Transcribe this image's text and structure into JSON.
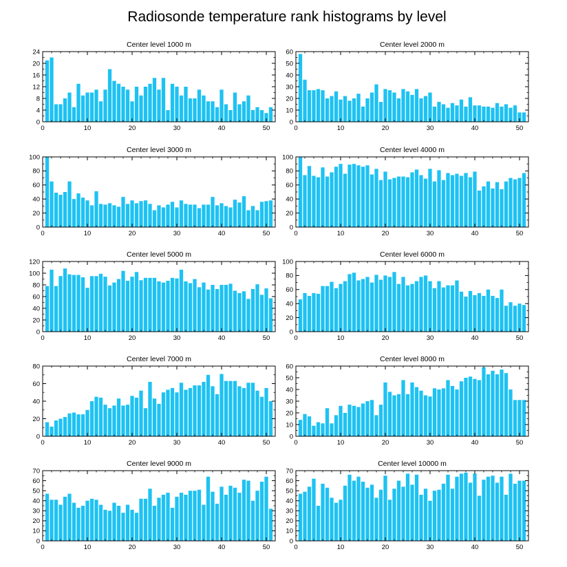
{
  "figure_title": "Radiosonde temperature rank histograms by level",
  "colors": {
    "bar": "#1ec2f2",
    "axis": "#000000"
  },
  "chart_data": [
    {
      "type": "bar",
      "title": "Center level 1000 m",
      "xlim": [
        0,
        52
      ],
      "ylim": [
        0,
        24
      ],
      "xticks": [
        0,
        10,
        20,
        30,
        40,
        50
      ],
      "yticks": [
        0,
        4,
        8,
        12,
        16,
        20,
        24
      ],
      "x": [
        1,
        2,
        3,
        4,
        5,
        6,
        7,
        8,
        9,
        10,
        11,
        12,
        13,
        14,
        15,
        16,
        17,
        18,
        19,
        20,
        21,
        22,
        23,
        24,
        25,
        26,
        27,
        28,
        29,
        30,
        31,
        32,
        33,
        34,
        35,
        36,
        37,
        38,
        39,
        40,
        41,
        42,
        43,
        44,
        45,
        46,
        47,
        48,
        49,
        50,
        51
      ],
      "values": [
        21,
        22,
        6,
        6,
        8,
        10,
        5,
        13,
        9,
        10,
        10,
        11,
        7,
        11,
        18,
        14,
        13,
        12,
        11,
        7,
        12,
        9,
        12,
        13,
        15,
        11,
        15,
        4,
        13,
        12,
        9,
        12,
        8,
        8,
        11,
        9,
        7,
        7,
        5,
        11,
        6,
        4,
        10,
        6,
        7,
        9,
        4,
        5,
        4,
        3,
        5
      ]
    },
    {
      "type": "bar",
      "title": "Center level 2000 m",
      "xlim": [
        0,
        52
      ],
      "ylim": [
        0,
        60
      ],
      "xticks": [
        0,
        10,
        20,
        30,
        40,
        50
      ],
      "yticks": [
        0,
        10,
        20,
        30,
        40,
        50,
        60
      ],
      "x": [
        1,
        2,
        3,
        4,
        5,
        6,
        7,
        8,
        9,
        10,
        11,
        12,
        13,
        14,
        15,
        16,
        17,
        18,
        19,
        20,
        21,
        22,
        23,
        24,
        25,
        26,
        27,
        28,
        29,
        30,
        31,
        32,
        33,
        34,
        35,
        36,
        37,
        38,
        39,
        40,
        41,
        42,
        43,
        44,
        45,
        46,
        47,
        48,
        49,
        50,
        51
      ],
      "values": [
        58,
        36,
        27,
        27,
        28,
        27,
        20,
        22,
        26,
        19,
        22,
        18,
        20,
        24,
        13,
        20,
        25,
        32,
        17,
        28,
        27,
        25,
        20,
        28,
        26,
        23,
        28,
        20,
        22,
        25,
        13,
        17,
        15,
        12,
        16,
        14,
        19,
        13,
        21,
        14,
        14,
        13,
        13,
        12,
        16,
        13,
        15,
        12,
        14,
        8,
        8
      ]
    },
    {
      "type": "bar",
      "title": "Center level 3000 m",
      "xlim": [
        0,
        52
      ],
      "ylim": [
        0,
        100
      ],
      "xticks": [
        0,
        10,
        20,
        30,
        40,
        50
      ],
      "yticks": [
        0,
        20,
        40,
        60,
        80,
        100
      ],
      "x": [
        1,
        2,
        3,
        4,
        5,
        6,
        7,
        8,
        9,
        10,
        11,
        12,
        13,
        14,
        15,
        16,
        17,
        18,
        19,
        20,
        21,
        22,
        23,
        24,
        25,
        26,
        27,
        28,
        29,
        30,
        31,
        32,
        33,
        34,
        35,
        36,
        37,
        38,
        39,
        40,
        41,
        42,
        43,
        44,
        45,
        46,
        47,
        48,
        49,
        50,
        51
      ],
      "values": [
        100,
        65,
        49,
        46,
        50,
        65,
        40,
        48,
        42,
        38,
        31,
        51,
        33,
        32,
        34,
        31,
        29,
        43,
        33,
        38,
        34,
        37,
        38,
        33,
        24,
        31,
        28,
        32,
        36,
        28,
        38,
        33,
        32,
        32,
        27,
        32,
        32,
        43,
        31,
        34,
        30,
        28,
        39,
        35,
        44,
        24,
        30,
        24,
        36,
        37,
        38
      ]
    },
    {
      "type": "bar",
      "title": "Center level 4000 m",
      "xlim": [
        0,
        52
      ],
      "ylim": [
        0,
        100
      ],
      "xticks": [
        0,
        10,
        20,
        30,
        40,
        50
      ],
      "yticks": [
        0,
        20,
        40,
        60,
        80,
        100
      ],
      "x": [
        1,
        2,
        3,
        4,
        5,
        6,
        7,
        8,
        9,
        10,
        11,
        12,
        13,
        14,
        15,
        16,
        17,
        18,
        19,
        20,
        21,
        22,
        23,
        24,
        25,
        26,
        27,
        28,
        29,
        30,
        31,
        32,
        33,
        34,
        35,
        36,
        37,
        38,
        39,
        40,
        41,
        42,
        43,
        44,
        45,
        46,
        47,
        48,
        49,
        50,
        51
      ],
      "values": [
        100,
        74,
        87,
        73,
        71,
        85,
        72,
        78,
        86,
        90,
        76,
        89,
        90,
        88,
        86,
        88,
        75,
        83,
        67,
        79,
        68,
        70,
        72,
        72,
        71,
        78,
        82,
        74,
        69,
        83,
        65,
        81,
        67,
        77,
        74,
        76,
        73,
        77,
        71,
        79,
        52,
        58,
        65,
        55,
        64,
        54,
        65,
        70,
        68,
        70,
        77
      ]
    },
    {
      "type": "bar",
      "title": "Center level 5000 m",
      "xlim": [
        0,
        52
      ],
      "ylim": [
        0,
        120
      ],
      "xticks": [
        0,
        10,
        20,
        30,
        40,
        50
      ],
      "yticks": [
        0,
        20,
        40,
        60,
        80,
        100,
        120
      ],
      "x": [
        1,
        2,
        3,
        4,
        5,
        6,
        7,
        8,
        9,
        10,
        11,
        12,
        13,
        14,
        15,
        16,
        17,
        18,
        19,
        20,
        21,
        22,
        23,
        24,
        25,
        26,
        27,
        28,
        29,
        30,
        31,
        32,
        33,
        34,
        35,
        36,
        37,
        38,
        39,
        40,
        41,
        42,
        43,
        44,
        45,
        46,
        47,
        48,
        49,
        50,
        51
      ],
      "values": [
        78,
        106,
        78,
        95,
        108,
        98,
        97,
        97,
        93,
        75,
        95,
        95,
        99,
        94,
        79,
        84,
        90,
        104,
        87,
        94,
        102,
        88,
        92,
        92,
        92,
        86,
        84,
        87,
        92,
        91,
        106,
        86,
        83,
        90,
        76,
        84,
        72,
        80,
        73,
        80,
        80,
        82,
        70,
        66,
        69,
        56,
        73,
        81,
        63,
        74,
        57
      ]
    },
    {
      "type": "bar",
      "title": "Center level 6000 m",
      "xlim": [
        0,
        52
      ],
      "ylim": [
        0,
        100
      ],
      "xticks": [
        0,
        10,
        20,
        30,
        40,
        50
      ],
      "yticks": [
        0,
        20,
        40,
        60,
        80,
        100
      ],
      "x": [
        1,
        2,
        3,
        4,
        5,
        6,
        7,
        8,
        9,
        10,
        11,
        12,
        13,
        14,
        15,
        16,
        17,
        18,
        19,
        20,
        21,
        22,
        23,
        24,
        25,
        26,
        27,
        28,
        29,
        30,
        31,
        32,
        33,
        34,
        35,
        36,
        37,
        38,
        39,
        40,
        41,
        42,
        43,
        44,
        45,
        46,
        47,
        48,
        49,
        50,
        51
      ],
      "values": [
        46,
        55,
        51,
        55,
        54,
        65,
        65,
        71,
        62,
        68,
        72,
        82,
        84,
        73,
        75,
        78,
        70,
        81,
        74,
        80,
        78,
        85,
        68,
        78,
        66,
        68,
        72,
        78,
        80,
        72,
        62,
        72,
        63,
        66,
        66,
        73,
        57,
        50,
        58,
        52,
        55,
        51,
        60,
        51,
        48,
        60,
        37,
        42,
        37,
        40,
        38
      ]
    },
    {
      "type": "bar",
      "title": "Center level 7000 m",
      "xlim": [
        0,
        52
      ],
      "ylim": [
        0,
        80
      ],
      "xticks": [
        0,
        10,
        20,
        30,
        40,
        50
      ],
      "yticks": [
        0,
        20,
        40,
        60,
        80
      ],
      "x": [
        1,
        2,
        3,
        4,
        5,
        6,
        7,
        8,
        9,
        10,
        11,
        12,
        13,
        14,
        15,
        16,
        17,
        18,
        19,
        20,
        21,
        22,
        23,
        24,
        25,
        26,
        27,
        28,
        29,
        30,
        31,
        32,
        33,
        34,
        35,
        36,
        37,
        38,
        39,
        40,
        41,
        42,
        43,
        44,
        45,
        46,
        47,
        48,
        49,
        50,
        51
      ],
      "values": [
        16,
        11,
        18,
        20,
        22,
        26,
        27,
        25,
        25,
        30,
        40,
        45,
        44,
        36,
        32,
        35,
        43,
        35,
        36,
        46,
        44,
        52,
        32,
        62,
        43,
        37,
        50,
        53,
        55,
        50,
        61,
        53,
        55,
        58,
        58,
        62,
        70,
        57,
        48,
        71,
        63,
        63,
        63,
        57,
        55,
        61,
        61,
        52,
        45,
        55,
        40
      ]
    },
    {
      "type": "bar",
      "title": "Center level 8000 m",
      "xlim": [
        0,
        52
      ],
      "ylim": [
        0,
        60
      ],
      "xticks": [
        0,
        10,
        20,
        30,
        40,
        50
      ],
      "yticks": [
        0,
        10,
        20,
        30,
        40,
        50,
        60
      ],
      "x": [
        1,
        2,
        3,
        4,
        5,
        6,
        7,
        8,
        9,
        10,
        11,
        12,
        13,
        14,
        15,
        16,
        17,
        18,
        19,
        20,
        21,
        22,
        23,
        24,
        25,
        26,
        27,
        28,
        29,
        30,
        31,
        32,
        33,
        34,
        35,
        36,
        37,
        38,
        39,
        40,
        41,
        42,
        43,
        44,
        45,
        46,
        47,
        48,
        49,
        50,
        51
      ],
      "values": [
        14,
        19,
        17,
        9,
        12,
        11,
        24,
        11,
        18,
        26,
        20,
        27,
        26,
        25,
        28,
        30,
        31,
        18,
        27,
        46,
        38,
        35,
        36,
        48,
        36,
        46,
        42,
        39,
        35,
        34,
        41,
        40,
        41,
        48,
        43,
        40,
        47,
        50,
        51,
        49,
        48,
        59,
        53,
        56,
        53,
        57,
        54,
        40,
        31,
        31,
        31
      ]
    },
    {
      "type": "bar",
      "title": "Center level 9000 m",
      "xlim": [
        0,
        52
      ],
      "ylim": [
        0,
        70
      ],
      "xticks": [
        0,
        10,
        20,
        30,
        40,
        50
      ],
      "yticks": [
        0,
        10,
        20,
        30,
        40,
        50,
        60,
        70
      ],
      "x": [
        1,
        2,
        3,
        4,
        5,
        6,
        7,
        8,
        9,
        10,
        11,
        12,
        13,
        14,
        15,
        16,
        17,
        18,
        19,
        20,
        21,
        22,
        23,
        24,
        25,
        26,
        27,
        28,
        29,
        30,
        31,
        32,
        33,
        34,
        35,
        36,
        37,
        38,
        39,
        40,
        41,
        42,
        43,
        44,
        45,
        46,
        47,
        48,
        49,
        50,
        51
      ],
      "values": [
        47,
        41,
        41,
        36,
        44,
        47,
        38,
        33,
        35,
        40,
        42,
        41,
        36,
        31,
        30,
        38,
        35,
        28,
        36,
        31,
        28,
        42,
        42,
        52,
        35,
        43,
        46,
        48,
        33,
        44,
        48,
        46,
        50,
        50,
        51,
        36,
        64,
        49,
        37,
        54,
        46,
        55,
        53,
        48,
        61,
        60,
        40,
        50,
        59,
        64,
        32
      ]
    },
    {
      "type": "bar",
      "title": "Center level 10000 m",
      "xlim": [
        0,
        52
      ],
      "ylim": [
        0,
        70
      ],
      "xticks": [
        0,
        10,
        20,
        30,
        40,
        50
      ],
      "yticks": [
        0,
        10,
        20,
        30,
        40,
        50,
        60,
        70
      ],
      "x": [
        1,
        2,
        3,
        4,
        5,
        6,
        7,
        8,
        9,
        10,
        11,
        12,
        13,
        14,
        15,
        16,
        17,
        18,
        19,
        20,
        21,
        22,
        23,
        24,
        25,
        26,
        27,
        28,
        29,
        30,
        31,
        32,
        33,
        34,
        35,
        36,
        37,
        38,
        39,
        40,
        41,
        42,
        43,
        44,
        45,
        46,
        47,
        48,
        49,
        50,
        51
      ],
      "values": [
        47,
        49,
        54,
        62,
        35,
        57,
        53,
        43,
        38,
        41,
        55,
        66,
        60,
        64,
        59,
        53,
        56,
        43,
        51,
        65,
        41,
        52,
        60,
        54,
        67,
        56,
        66,
        46,
        52,
        40,
        50,
        51,
        57,
        66,
        52,
        64,
        67,
        68,
        58,
        67,
        45,
        61,
        64,
        65,
        58,
        64,
        46,
        67,
        57,
        60,
        60
      ]
    }
  ]
}
